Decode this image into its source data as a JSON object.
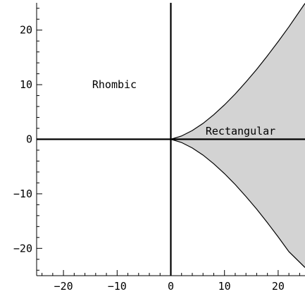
{
  "chart_data": {
    "type": "area",
    "title": "",
    "xlabel": "",
    "ylabel": "",
    "xlim": [
      -25,
      25
    ],
    "ylim": [
      -25,
      25
    ],
    "grid": false,
    "x_ticks": [
      -20,
      -10,
      0,
      10,
      20
    ],
    "y_ticks": [
      -20,
      -10,
      0,
      10,
      20
    ],
    "x_tick_labels": [
      "−20",
      "−10",
      "0",
      "10",
      "20"
    ],
    "y_tick_labels": [
      "−20",
      "−10",
      "0",
      "10",
      "20"
    ],
    "region": {
      "name": "Rectangular",
      "fill": "#d3d3d3",
      "x": [
        0,
        2,
        4,
        6,
        8,
        10,
        12,
        14,
        16,
        18,
        20,
        22,
        25
      ],
      "upper": [
        0,
        0.6,
        1.6,
        2.9,
        4.5,
        6.3,
        8.3,
        10.5,
        12.8,
        15.3,
        17.9,
        20.6,
        24.9
      ],
      "lower": [
        0,
        -0.6,
        -1.6,
        -2.9,
        -4.5,
        -6.3,
        -8.3,
        -10.5,
        -12.8,
        -15.3,
        -17.9,
        -20.6,
        -23.5
      ]
    },
    "annotations": [
      {
        "text": "Rhombic",
        "x": -10.5,
        "y": 10
      },
      {
        "text": "Rectangular",
        "x": 13,
        "y": 1.5
      }
    ]
  }
}
